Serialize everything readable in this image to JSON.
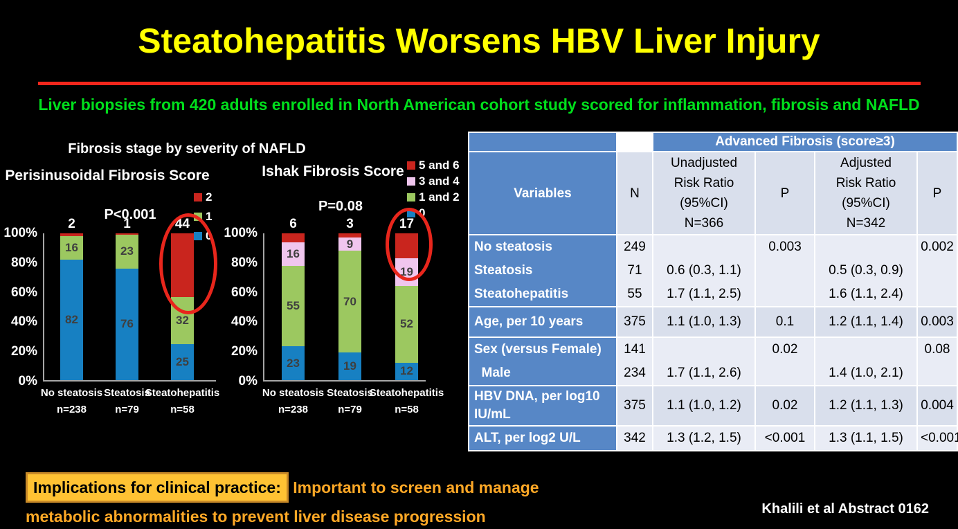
{
  "slide": {
    "title": "Steatohepatitis Worsens HBV Liver Injury",
    "subtitle": "Liver biopsies from 420 adults enrolled in North American cohort study scored for inflammation, fibrosis and NAFLD",
    "figure_title": "Fibrosis stage by severity of NAFLD",
    "citation": "Khalili et al Abstract 0162",
    "implications": {
      "highlight": "Implications for clinical practice:",
      "line1": "Important to screen and manage",
      "line2": "metabolic abnormalities to prevent liver disease progression"
    }
  },
  "colors": {
    "title_yellow": "#FFFF00",
    "divider_red": "#F3261C",
    "subtitle_green": "#00DF1C",
    "bar_blue": "#1780C2",
    "bar_green": "#9CC860",
    "bar_red": "#C9251E",
    "bar_pink": "#F0C6EE",
    "annotation_circle_red": "#E8261C",
    "table_header_blue": "#5787C6",
    "table_band_dark": "#D9DFEC",
    "table_band_light": "#E9ECF5",
    "highlight_box_fill": "#FFC233",
    "footer_orange": "#FFA826"
  },
  "chart_data": [
    {
      "type": "bar",
      "subtype": "stacked-percent",
      "title": "Perisinusoidal Fibrosis Score",
      "p_label": "P<0.001",
      "y_ticks": [
        "100%",
        "80%",
        "60%",
        "40%",
        "20%",
        "0%"
      ],
      "ylim": [
        0,
        100
      ],
      "categories": [
        {
          "label": "No steatosis",
          "n": "n=238"
        },
        {
          "label": "Steatosis",
          "n": "n=79"
        },
        {
          "label": "Steatohepatitis",
          "n": "n=58"
        }
      ],
      "series": [
        {
          "name": "0",
          "color": "#1780C2",
          "values": [
            82,
            76,
            25
          ]
        },
        {
          "name": "1",
          "color": "#9CC860",
          "values": [
            16,
            23,
            32
          ]
        },
        {
          "name": "2",
          "color": "#C9251E",
          "values": [
            2,
            1,
            44
          ]
        }
      ],
      "legend": [
        {
          "label": "2",
          "color": "#C9251E"
        },
        {
          "label": "1",
          "color": "#9CC860"
        },
        {
          "label": "0",
          "color": "#1780C2"
        }
      ],
      "annotation": "red ellipse around score-2 segment of Steatohepatitis bar"
    },
    {
      "type": "bar",
      "subtype": "stacked-percent",
      "title": "Ishak Fibrosis Score",
      "p_label": "P=0.08",
      "y_ticks": [
        "100%",
        "80%",
        "60%",
        "40%",
        "20%",
        "0%"
      ],
      "ylim": [
        0,
        100
      ],
      "categories": [
        {
          "label": "No steatosis",
          "n": "n=238"
        },
        {
          "label": "Steatosis",
          "n": "n=79"
        },
        {
          "label": "Steatohepatitis",
          "n": "n=58"
        }
      ],
      "series": [
        {
          "name": "0",
          "color": "#1780C2",
          "values": [
            23,
            19,
            12
          ]
        },
        {
          "name": "1 and 2",
          "color": "#9CC860",
          "values": [
            55,
            70,
            52
          ]
        },
        {
          "name": "3 and 4",
          "color": "#F0C6EE",
          "values": [
            16,
            9,
            19
          ]
        },
        {
          "name": "5 and 6",
          "color": "#C9251E",
          "values": [
            6,
            3,
            17
          ]
        }
      ],
      "legend": [
        {
          "label": "5 and 6",
          "color": "#C9251E"
        },
        {
          "label": "3 and 4",
          "color": "#F0C6EE"
        },
        {
          "label": "1 and 2",
          "color": "#9CC860"
        },
        {
          "label": "0",
          "color": "#1780C2"
        }
      ],
      "annotation": "red ellipse around top two segments of Steatohepatitis bar"
    },
    {
      "type": "table",
      "span_header": "Advanced Fibrosis (score≥3)",
      "columns": {
        "variables": "Variables",
        "n": "N",
        "unadjusted": "Unadjusted\nRisk Ratio\n(95%CI)\nN=366",
        "p1": "P",
        "adjusted": "Adjusted\nRisk Ratio\n(95%CI)\nN=342",
        "p2": "P"
      },
      "rows": [
        {
          "variable": "No steatosis\nSteatosis\nSteatohepatitis",
          "n": "249\n71\n55",
          "unadjusted": "\n0.6 (0.3, 1.1)\n1.7 (1.1, 2.5)",
          "p1": "0.003",
          "adjusted": "\n0.5 (0.3, 0.9)\n1.6 (1.1, 2.4)",
          "p2": "0.002"
        },
        {
          "variable": "Age, per 10 years",
          "n": "375",
          "unadjusted": "1.1 (1.0, 1.3)",
          "p1": "0.1",
          "adjusted": "1.2 (1.1, 1.4)",
          "p2": "0.003"
        },
        {
          "variable": "Sex (versus Female)\n  Male",
          "n": "141\n234",
          "unadjusted": "\n1.7 (1.1, 2.6)",
          "p1": "0.02",
          "adjusted": "\n1.4 (1.0, 2.1)",
          "p2": "0.08"
        },
        {
          "variable": "HBV DNA, per log10\nIU/mL",
          "n": "375",
          "unadjusted": "1.1 (1.0, 1.2)",
          "p1": "0.02",
          "adjusted": "1.2 (1.1, 1.3)",
          "p2": "0.004"
        },
        {
          "variable": "ALT, per log2 U/L",
          "n": "342",
          "unadjusted": "1.3 (1.2, 1.5)",
          "p1": "<0.001",
          "adjusted": "1.3 (1.1, 1.5)",
          "p2": "<0.001"
        }
      ],
      "annotation": "red ellipse around adjusted risk ratio 1.6 (1.1, 2.4) for Steatohepatitis"
    }
  ]
}
